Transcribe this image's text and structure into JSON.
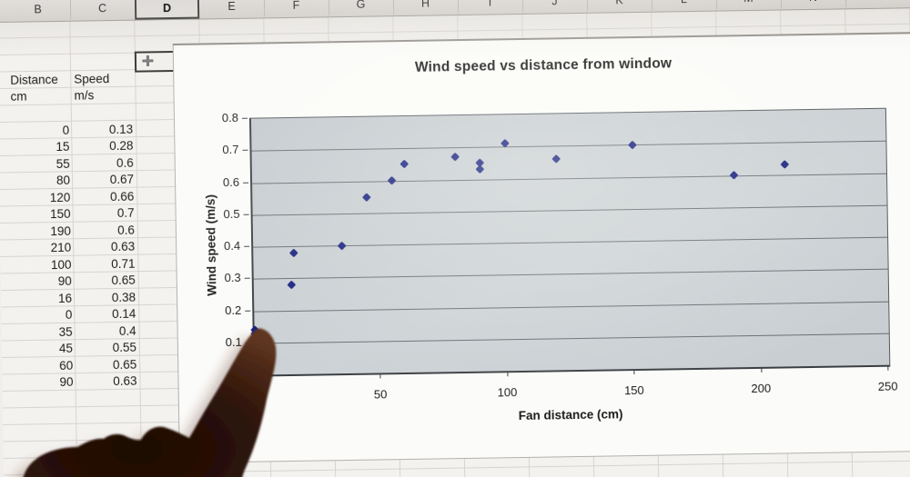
{
  "chart_data": {
    "type": "scatter",
    "title": "Wind speed vs distance from window",
    "xlabel": "Fan distance (cm)",
    "ylabel": "Wind speed (m/s)",
    "xlim": [
      0,
      250
    ],
    "ylim": [
      0,
      0.8
    ],
    "xticks": [
      50,
      100,
      150,
      200,
      250
    ],
    "yticks": [
      0.1,
      0.2,
      0.3,
      0.4,
      0.5,
      0.6,
      0.7,
      0.8
    ],
    "grid": "horizontal",
    "legend": "none",
    "marker": "diamond",
    "points": [
      [
        0,
        0.13
      ],
      [
        15,
        0.28
      ],
      [
        55,
        0.6
      ],
      [
        80,
        0.67
      ],
      [
        120,
        0.66
      ],
      [
        150,
        0.7
      ],
      [
        190,
        0.6
      ],
      [
        210,
        0.63
      ],
      [
        100,
        0.71
      ],
      [
        90,
        0.65
      ],
      [
        16,
        0.38
      ],
      [
        0,
        0.14
      ],
      [
        35,
        0.4
      ],
      [
        45,
        0.55
      ],
      [
        60,
        0.65
      ],
      [
        90,
        0.63
      ]
    ]
  },
  "spreadsheet": {
    "column_headers": [
      "B",
      "C",
      "D",
      "E",
      "F",
      "G",
      "H",
      "I",
      "J",
      "K",
      "L",
      "M",
      "N"
    ],
    "selected_column": "D",
    "table": {
      "headers": [
        "Distance",
        "Speed"
      ],
      "units": [
        "cm",
        "m/s"
      ],
      "rows": [
        [
          "0",
          "0.13"
        ],
        [
          "15",
          "0.28"
        ],
        [
          "55",
          "0.6"
        ],
        [
          "80",
          "0.67"
        ],
        [
          "120",
          "0.66"
        ],
        [
          "150",
          "0.7"
        ],
        [
          "190",
          "0.6"
        ],
        [
          "210",
          "0.63"
        ],
        [
          "100",
          "0.71"
        ],
        [
          "90",
          "0.65"
        ],
        [
          "16",
          "0.38"
        ],
        [
          "0",
          "0.14"
        ],
        [
          "35",
          "0.4"
        ],
        [
          "45",
          "0.55"
        ],
        [
          "60",
          "0.65"
        ],
        [
          "90",
          "0.63"
        ]
      ]
    }
  },
  "colors": {
    "marker": "#141d7d",
    "plot_bg": "#c9cfd3",
    "gridline": "#676c71",
    "chart_bg": "#fbfbf9",
    "sheet_bg": "#f4f2ef"
  }
}
